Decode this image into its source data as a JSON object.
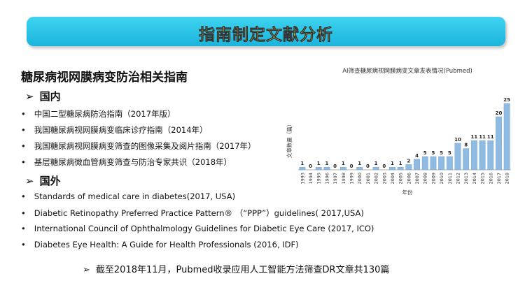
{
  "header": {
    "title": "指南制定文献分析"
  },
  "section": {
    "title": "糖尿病视网膜病变防治相关指南",
    "domestic": {
      "heading": "国内",
      "items": [
        "中国二型糖尿病防治指南（2017年版）",
        "我国糖尿病视网膜病变临床诊疗指南（2014年）",
        "我国糖尿病视网膜病变筛查的图像采集及阅片指南（2017年）",
        "基层糖尿病微血管病变筛查与防治专家共识（2018年）"
      ]
    },
    "foreign": {
      "heading": "国外",
      "items": [
        "Standards of medical care in diabetes(2017, USA)",
        "Diabetic Retinopathy Preferred Practice Pattern® （“PPP”）guidelines( 2017,USA)",
        "International Council of Ophthalmology Guidelines for Diabetic Eye Care (2017, ICO)",
        "Diabetes Eye Health: A Guide for Health Professionals (2016, IDF)"
      ]
    }
  },
  "footer": "截至2018年11月，Pubmed收录应用人工智能方法筛查DR文章共130篇",
  "chart_data": {
    "type": "bar",
    "title": "AI筛查糖尿病视网膜病变文章发表情况(Pubmed)",
    "x_label": "年份",
    "y_label": "文章数量（篇）",
    "color": "#8fbbe3",
    "categories": [
      "1993",
      "1994",
      "1995",
      "1996",
      "1997",
      "1998",
      "1999",
      "2000",
      "2001",
      "2002",
      "2003",
      "2004",
      "2005",
      "2006",
      "2007",
      "2008",
      "2009",
      "2010",
      "2011",
      "2012",
      "2013",
      "2014",
      "2015",
      "2016",
      "2017",
      "2018"
    ],
    "values": [
      1,
      0,
      1,
      1,
      0,
      1,
      0,
      1,
      0,
      1,
      0,
      1,
      1,
      2,
      4,
      5,
      5,
      5,
      5,
      10,
      8,
      11,
      11,
      11,
      20,
      25
    ]
  }
}
